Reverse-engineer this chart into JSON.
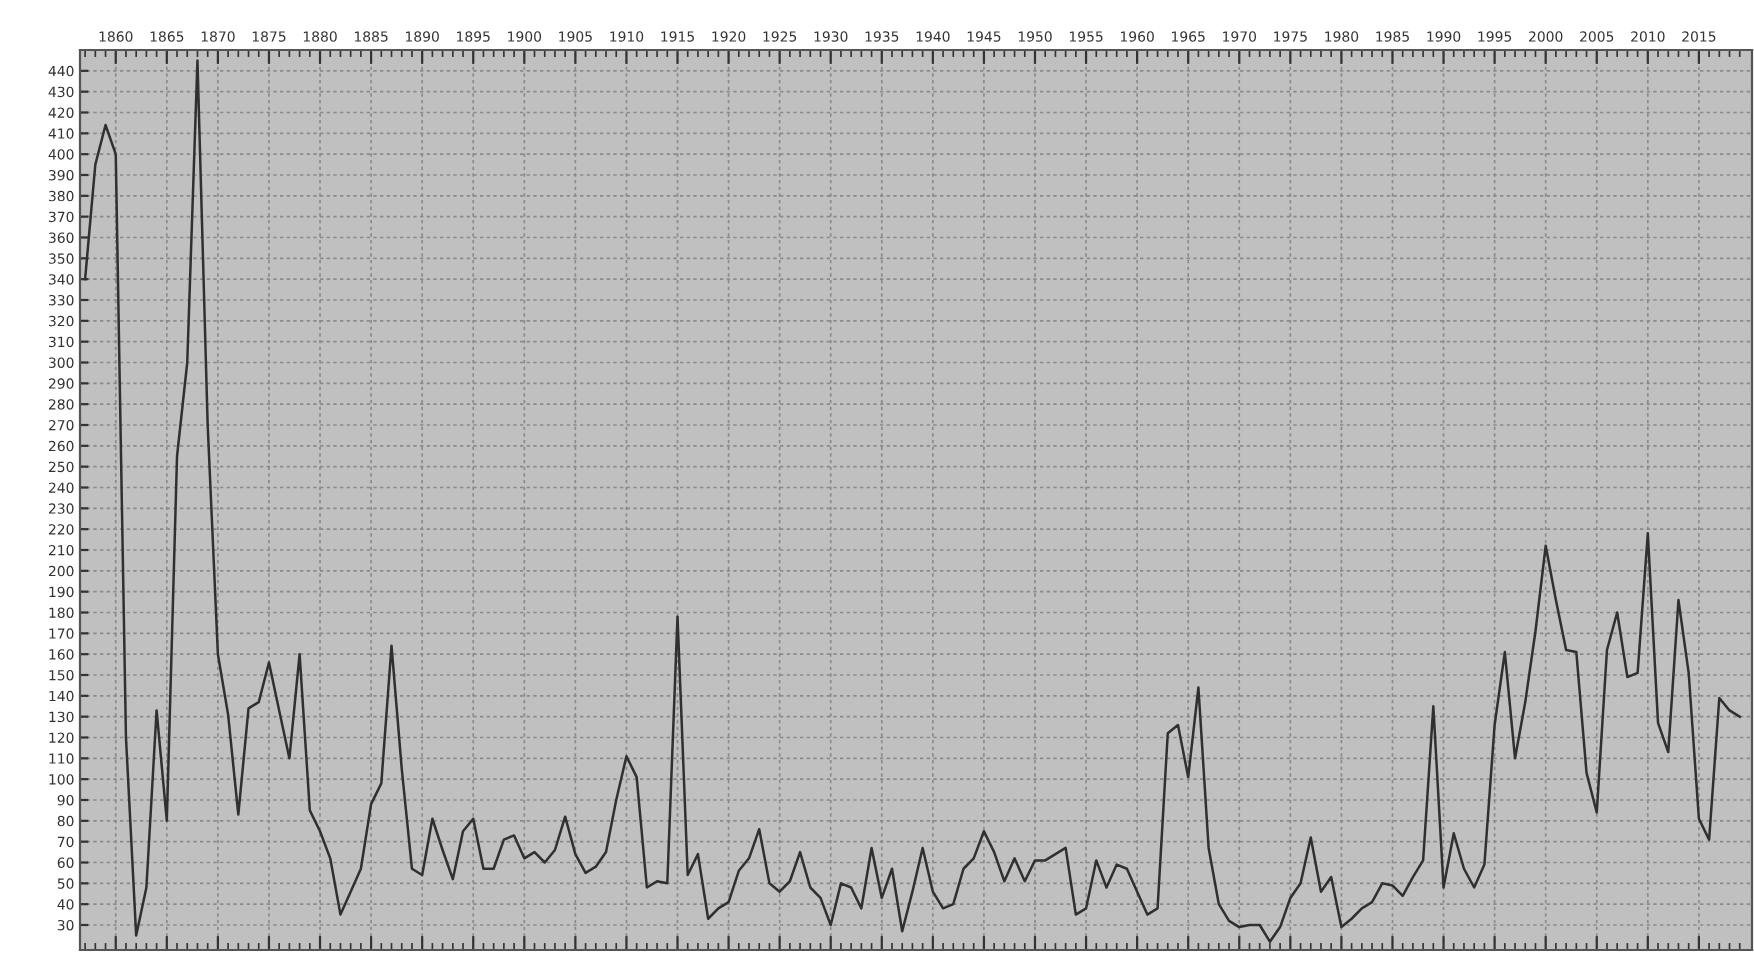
{
  "chart_data": {
    "type": "line",
    "x": [
      1857,
      1858,
      1859,
      1860,
      1861,
      1862,
      1863,
      1864,
      1865,
      1866,
      1867,
      1868,
      1869,
      1870,
      1871,
      1872,
      1873,
      1874,
      1875,
      1876,
      1877,
      1878,
      1879,
      1880,
      1881,
      1882,
      1883,
      1884,
      1885,
      1886,
      1887,
      1888,
      1889,
      1890,
      1891,
      1892,
      1893,
      1894,
      1895,
      1896,
      1897,
      1898,
      1899,
      1900,
      1901,
      1902,
      1903,
      1904,
      1905,
      1906,
      1907,
      1908,
      1909,
      1910,
      1911,
      1912,
      1913,
      1914,
      1915,
      1916,
      1917,
      1918,
      1919,
      1920,
      1921,
      1922,
      1923,
      1924,
      1925,
      1926,
      1927,
      1928,
      1929,
      1930,
      1931,
      1932,
      1933,
      1934,
      1935,
      1936,
      1937,
      1938,
      1939,
      1940,
      1941,
      1942,
      1943,
      1944,
      1945,
      1946,
      1947,
      1948,
      1949,
      1950,
      1951,
      1952,
      1953,
      1954,
      1955,
      1956,
      1957,
      1958,
      1959,
      1960,
      1961,
      1962,
      1963,
      1964,
      1965,
      1966,
      1967,
      1968,
      1969,
      1970,
      1971,
      1972,
      1973,
      1974,
      1975,
      1976,
      1977,
      1978,
      1979,
      1980,
      1981,
      1982,
      1983,
      1984,
      1985,
      1986,
      1987,
      1988,
      1989,
      1990,
      1991,
      1992,
      1993,
      1994,
      1995,
      1996,
      1997,
      1998,
      1999,
      2000,
      2001,
      2002,
      2003,
      2004,
      2005,
      2006,
      2007,
      2008,
      2009,
      2010,
      2011,
      2012,
      2013,
      2014,
      2015,
      2016,
      2017,
      2018,
      2019
    ],
    "series": [
      {
        "color": "#303030",
        "values": [
          340,
          395,
          414,
          400,
          120,
          25,
          48,
          133,
          80,
          255,
          300,
          445,
          270,
          160,
          131,
          83,
          134,
          137,
          156,
          133,
          110,
          160,
          85,
          75,
          62,
          35,
          46,
          57,
          88,
          98,
          164,
          105,
          57,
          54,
          81,
          66,
          52,
          75,
          81,
          57,
          57,
          71,
          73,
          62,
          65,
          60,
          66,
          82,
          64,
          55,
          58,
          65,
          90,
          111,
          101,
          48,
          51,
          50,
          178,
          54,
          64,
          33,
          38,
          41,
          56,
          62,
          76,
          50,
          46,
          51,
          65,
          48,
          43,
          30,
          50,
          48,
          38,
          67,
          43,
          57,
          27,
          46,
          67,
          46,
          38,
          40,
          57,
          62,
          75,
          65,
          51,
          62,
          51,
          61,
          61,
          64,
          67,
          35,
          38,
          61,
          48,
          59,
          57,
          46,
          35,
          38,
          122,
          126,
          101,
          144,
          67,
          40,
          32,
          29,
          30,
          30,
          22,
          29,
          43,
          50,
          72,
          46,
          53,
          29,
          33,
          38,
          41,
          50,
          49,
          44,
          53,
          61,
          135,
          48,
          74,
          57,
          48,
          59,
          126,
          161,
          110,
          137,
          171,
          212,
          186,
          162,
          161,
          103,
          84,
          162,
          180,
          149,
          151,
          218,
          127,
          113,
          186,
          151,
          81,
          71,
          139,
          133,
          130
        ]
      }
    ],
    "xlim": [
      1856.5,
      2020.2
    ],
    "ylim": [
      18,
      450
    ],
    "xticks": [
      1860,
      1865,
      1870,
      1875,
      1880,
      1885,
      1890,
      1895,
      1900,
      1905,
      1910,
      1915,
      1920,
      1925,
      1930,
      1935,
      1940,
      1945,
      1950,
      1955,
      1960,
      1965,
      1970,
      1975,
      1980,
      1985,
      1990,
      1995,
      2000,
      2005,
      2010,
      2015
    ],
    "yticks": [
      30,
      40,
      50,
      60,
      70,
      80,
      90,
      100,
      110,
      120,
      130,
      140,
      150,
      160,
      170,
      180,
      190,
      200,
      210,
      220,
      230,
      240,
      250,
      260,
      270,
      280,
      290,
      300,
      310,
      320,
      330,
      340,
      350,
      360,
      370,
      380,
      390,
      400,
      410,
      420,
      430,
      440
    ],
    "grid": true
  }
}
